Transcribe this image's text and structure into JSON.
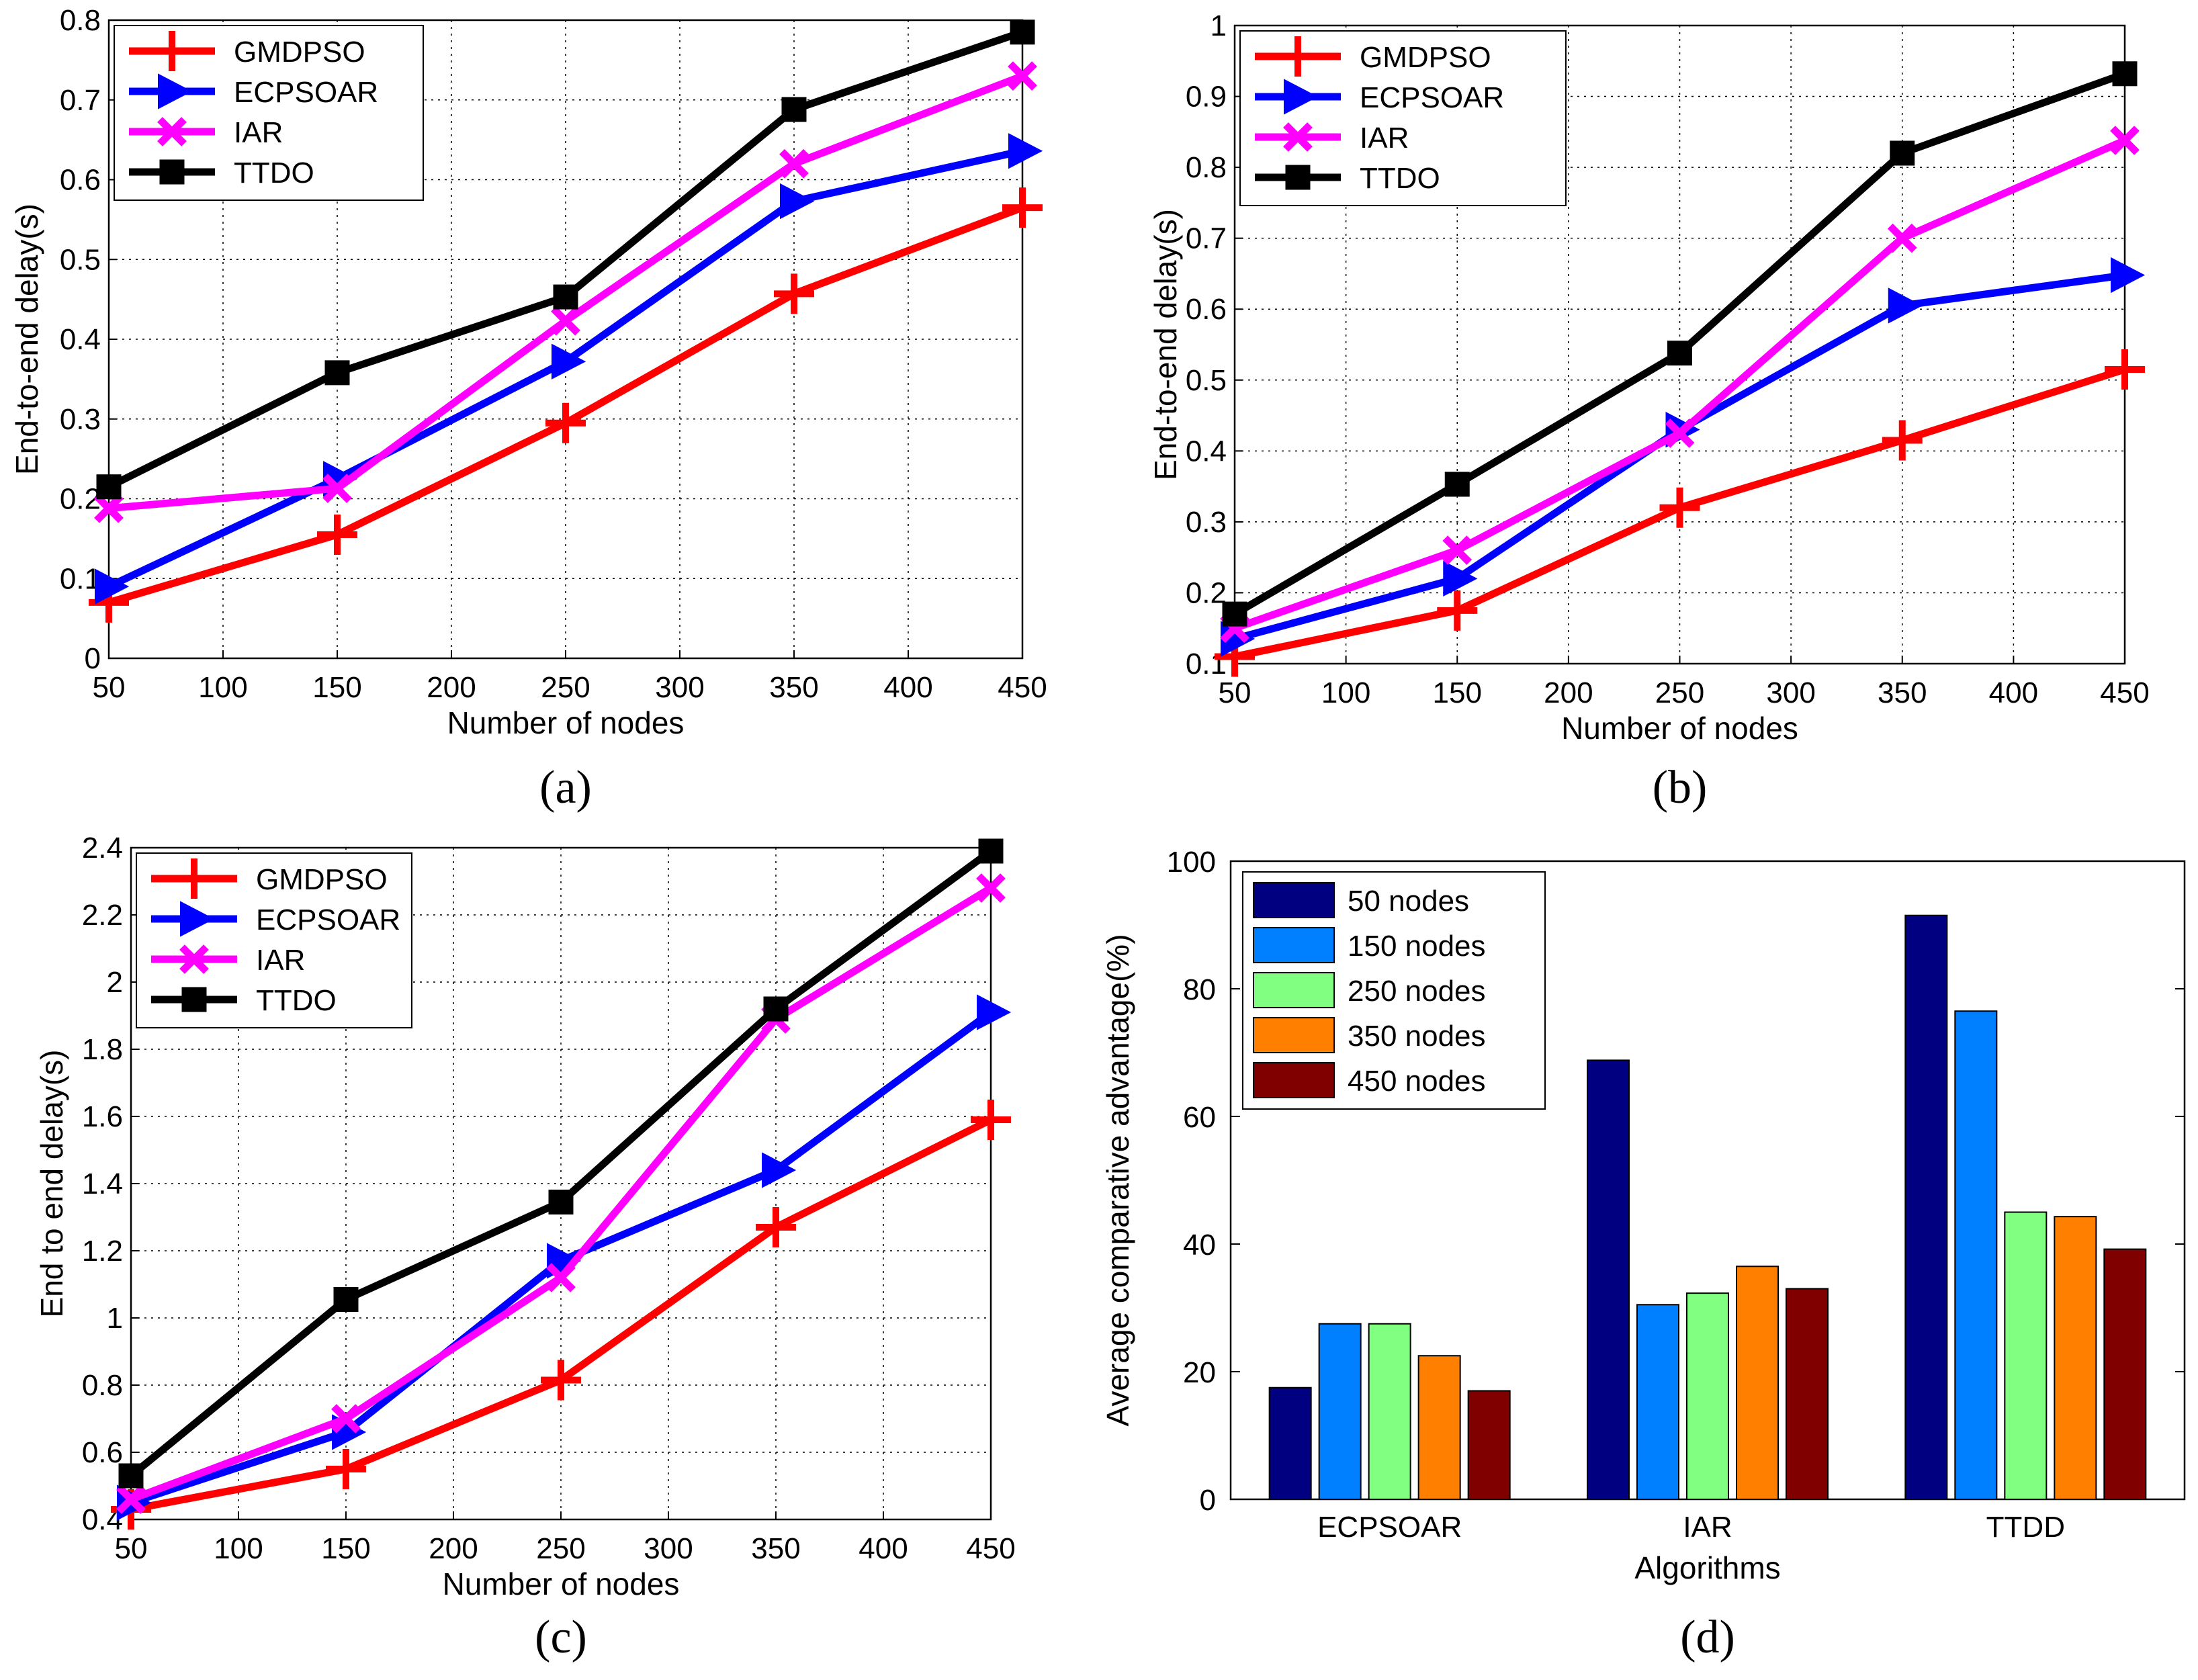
{
  "colors": {
    "GMDPSO": "#ff0000",
    "ECPSOAR": "#0000ff",
    "IAR": "#ff00ff",
    "TTDO": "#000000",
    "bars": [
      "#000080",
      "#0080ff",
      "#80ff80",
      "#ff8000",
      "#800000"
    ]
  },
  "chart_data": [
    {
      "panel": "a",
      "caption": "(a)",
      "caption_letter": "a",
      "type": "line",
      "xlabel": "Number of nodes",
      "ylabel": "End-to-end delay(s)",
      "xlim": [
        50,
        450
      ],
      "ylim": [
        0,
        0.8
      ],
      "xticks": [
        50,
        100,
        150,
        200,
        250,
        300,
        350,
        400,
        450
      ],
      "yticks": [
        0,
        0.1,
        0.2,
        0.3,
        0.4,
        0.5,
        0.6,
        0.7,
        0.8
      ],
      "legend_position": "top-left",
      "x": [
        50,
        150,
        250,
        350,
        450
      ],
      "series": [
        {
          "name": "GMDPSO",
          "marker": "plus",
          "values": [
            0.07,
            0.155,
            0.295,
            0.457,
            0.565
          ]
        },
        {
          "name": "ECPSOAR",
          "marker": "triangle-right",
          "values": [
            0.09,
            0.225,
            0.372,
            0.573,
            0.636
          ]
        },
        {
          "name": "IAR",
          "marker": "x",
          "values": [
            0.188,
            0.213,
            0.423,
            0.62,
            0.73
          ]
        },
        {
          "name": "TTDO",
          "marker": "square",
          "values": [
            0.215,
            0.358,
            0.453,
            0.688,
            0.785
          ]
        }
      ]
    },
    {
      "panel": "b",
      "caption": "(b)",
      "caption_letter": "b",
      "type": "line",
      "xlabel": "Number of nodes",
      "ylabel": "End-to-end delay(s)",
      "xlim": [
        50,
        450
      ],
      "ylim": [
        0.1,
        1
      ],
      "xticks": [
        50,
        100,
        150,
        200,
        250,
        300,
        350,
        400,
        450
      ],
      "yticks": [
        0.1,
        0.2,
        0.3,
        0.4,
        0.5,
        0.6,
        0.7,
        0.8,
        0.9,
        1
      ],
      "legend_position": "top-left",
      "x": [
        50,
        150,
        250,
        350,
        450
      ],
      "series": [
        {
          "name": "GMDPSO",
          "marker": "plus",
          "values": [
            0.11,
            0.175,
            0.32,
            0.415,
            0.515
          ]
        },
        {
          "name": "ECPSOAR",
          "marker": "triangle-right",
          "values": [
            0.135,
            0.22,
            0.43,
            0.605,
            0.648
          ]
        },
        {
          "name": "IAR",
          "marker": "x",
          "values": [
            0.15,
            0.26,
            0.425,
            0.7,
            0.838
          ]
        },
        {
          "name": "TTDO",
          "marker": "square",
          "values": [
            0.17,
            0.353,
            0.538,
            0.82,
            0.932
          ]
        }
      ]
    },
    {
      "panel": "c",
      "caption": "(c)",
      "caption_letter": "c",
      "type": "line",
      "xlabel": "Number of nodes",
      "ylabel": "End to end delay(s)",
      "xlim": [
        50,
        450
      ],
      "ylim": [
        0.4,
        2.4
      ],
      "xticks": [
        50,
        100,
        150,
        200,
        250,
        300,
        350,
        400,
        450
      ],
      "yticks": [
        0.4,
        0.6,
        0.8,
        1,
        1.2,
        1.4,
        1.6,
        1.8,
        2,
        2.2,
        2.4
      ],
      "legend_position": "top-left",
      "x": [
        50,
        150,
        250,
        350,
        450
      ],
      "series": [
        {
          "name": "GMDPSO",
          "marker": "plus",
          "values": [
            0.43,
            0.55,
            0.815,
            1.27,
            1.59
          ]
        },
        {
          "name": "ECPSOAR",
          "marker": "triangle-right",
          "values": [
            0.45,
            0.66,
            1.17,
            1.44,
            1.91
          ]
        },
        {
          "name": "IAR",
          "marker": "x",
          "values": [
            0.46,
            0.7,
            1.12,
            1.89,
            2.28
          ]
        },
        {
          "name": "TTDO",
          "marker": "square",
          "values": [
            0.53,
            1.055,
            1.345,
            1.92,
            2.39
          ]
        }
      ]
    },
    {
      "panel": "d",
      "caption": "(d)",
      "caption_letter": "d",
      "type": "bar",
      "xlabel": "Algorithms",
      "ylabel": "Average comparative advantage(%)",
      "ylim": [
        0,
        100
      ],
      "yticks": [
        0,
        20,
        40,
        60,
        80,
        100
      ],
      "legend_position": "top-left",
      "categories": [
        "ECPSOAR",
        "IAR",
        "TTDD"
      ],
      "series": [
        {
          "name": "50 nodes",
          "values": [
            17.5,
            68.8,
            91.5
          ]
        },
        {
          "name": "150 nodes",
          "values": [
            27.5,
            30.5,
            76.5
          ]
        },
        {
          "name": "250 nodes",
          "values": [
            27.5,
            32.3,
            45
          ]
        },
        {
          "name": "350 nodes",
          "values": [
            22.5,
            36.5,
            44.3
          ]
        },
        {
          "name": "450 nodes",
          "values": [
            17,
            33,
            39.2
          ]
        }
      ]
    }
  ]
}
